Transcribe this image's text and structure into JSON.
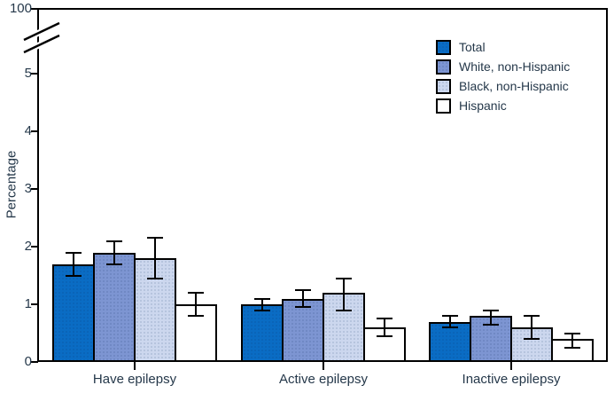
{
  "chart_data": {
    "type": "bar",
    "title": "",
    "xlabel": "",
    "ylabel": "Percentage",
    "categories": [
      "Have epilepsy",
      "Active epilepsy",
      "Inactive epilepsy"
    ],
    "series": [
      {
        "name": "Total",
        "color": "#0a6cc4",
        "values": [
          1.7,
          1.0,
          0.7
        ],
        "ci_low": [
          1.5,
          0.9,
          0.6
        ],
        "ci_high": [
          1.9,
          1.1,
          0.8
        ]
      },
      {
        "name": "White, non-Hispanic",
        "color": "#7d95d2",
        "values": [
          1.9,
          1.1,
          0.8
        ],
        "ci_low": [
          1.7,
          0.95,
          0.65
        ],
        "ci_high": [
          2.1,
          1.25,
          0.9
        ]
      },
      {
        "name": "Black, non-Hispanic",
        "color": "#ccd7ee",
        "values": [
          1.8,
          1.2,
          0.6
        ],
        "ci_low": [
          1.45,
          0.9,
          0.4
        ],
        "ci_high": [
          2.15,
          1.45,
          0.8
        ]
      },
      {
        "name": "Hispanic",
        "color": "#ffffff",
        "values": [
          1.0,
          0.6,
          0.4
        ],
        "ci_low": [
          0.8,
          0.45,
          0.25
        ],
        "ci_high": [
          1.2,
          0.75,
          0.5
        ]
      }
    ],
    "error_bars": true,
    "y_axis": {
      "ticks": [
        0,
        1,
        2,
        3,
        4,
        5
      ],
      "top_tick_label": "100",
      "axis_break": true,
      "ylim_display": [
        0,
        5
      ]
    },
    "legend_position": "top-right",
    "grid": false
  },
  "colors": {
    "axis": "#000000",
    "text": "#25384a",
    "bar_border": "#000000"
  }
}
